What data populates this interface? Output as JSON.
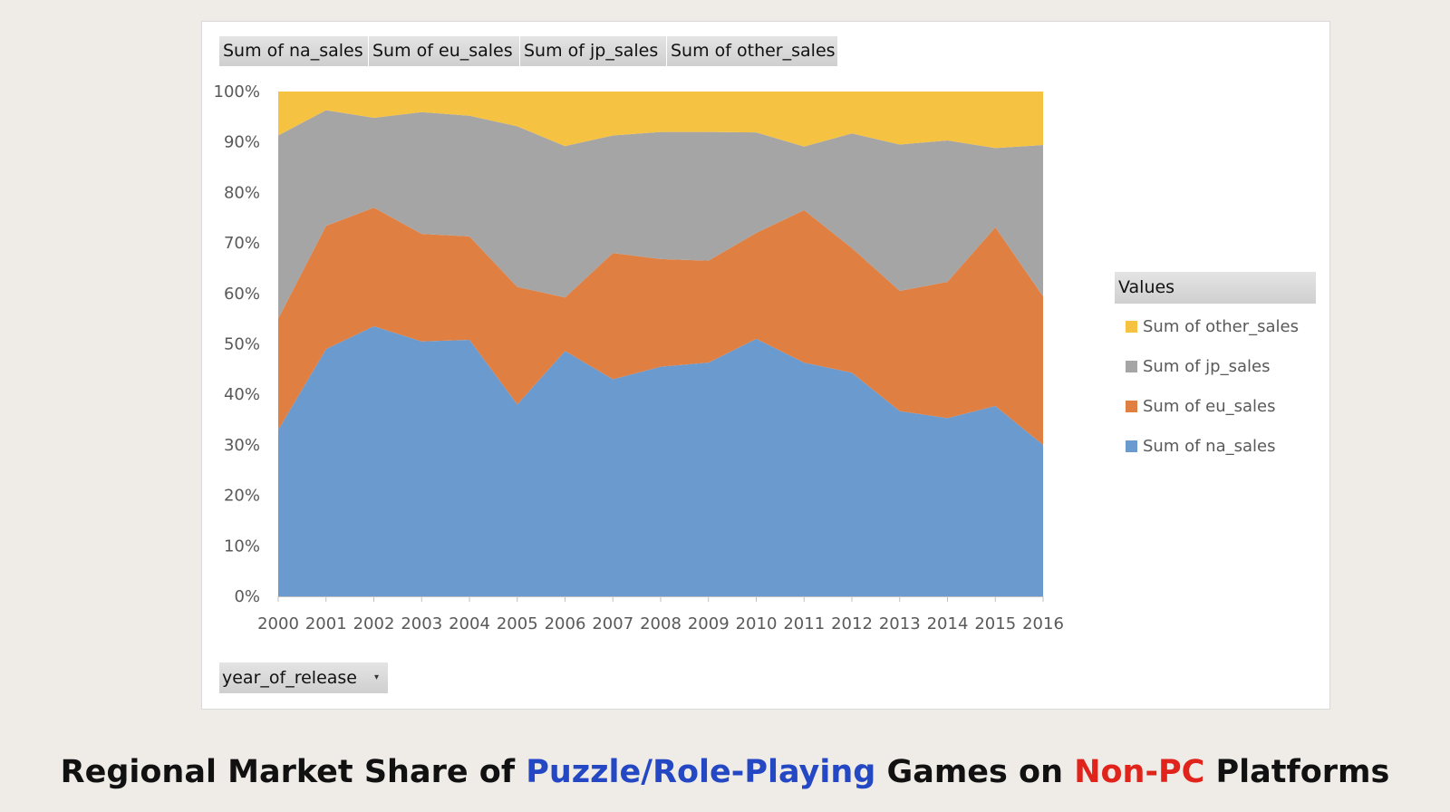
{
  "field_buttons": [
    "Sum of na_sales",
    "Sum of eu_sales",
    "Sum of jp_sales",
    "Sum of other_sales"
  ],
  "legend": {
    "title": "Values",
    "items": [
      {
        "label": "Sum of other_sales",
        "color": "#f5c242"
      },
      {
        "label": "Sum of jp_sales",
        "color": "#a5a5a5"
      },
      {
        "label": "Sum of eu_sales",
        "color": "#e07f42"
      },
      {
        "label": "Sum of na_sales",
        "color": "#6b9acf"
      }
    ]
  },
  "filter": {
    "label": "year_of_release",
    "arrow": "▾"
  },
  "footer": {
    "part1": "Regional Market Share of ",
    "part2": "Puzzle/Role-Playing",
    "part3": " Games on ",
    "part4": "Non-PC",
    "part5": " Platforms",
    "color2": "#2448c4",
    "color4": "#e0231b"
  },
  "chart_data": {
    "type": "area",
    "stacked": "percent",
    "x": [
      "2000",
      "2001",
      "2002",
      "2003",
      "2004",
      "2005",
      "2006",
      "2007",
      "2008",
      "2009",
      "2010",
      "2011",
      "2012",
      "2013",
      "2014",
      "2015",
      "2016"
    ],
    "yticks": [
      "0%",
      "10%",
      "20%",
      "30%",
      "40%",
      "50%",
      "60%",
      "70%",
      "80%",
      "90%",
      "100%"
    ],
    "ylim": [
      0,
      100
    ],
    "series": [
      {
        "name": "Sum of na_sales",
        "color": "#6b9acf",
        "values": [
          33,
          49,
          53.5,
          50.5,
          50.8,
          38,
          48.6,
          43,
          45.5,
          46.3,
          51,
          46.3,
          44.3,
          36.7,
          35.3,
          37.7,
          30
        ]
      },
      {
        "name": "Sum of eu_sales",
        "color": "#e07f42",
        "values": [
          22,
          24.4,
          23.5,
          21.3,
          20.5,
          23.3,
          10.6,
          25,
          21.3,
          20.2,
          21,
          30.2,
          24.7,
          23.8,
          27,
          35.4,
          29.4
        ]
      },
      {
        "name": "Sum of jp_sales",
        "color": "#a5a5a5",
        "values": [
          36.3,
          22.9,
          17.8,
          24.1,
          23.9,
          31.8,
          30,
          23.3,
          25.2,
          25.5,
          19.9,
          12.6,
          22.7,
          29,
          28,
          15.7,
          30
        ]
      },
      {
        "name": "Sum of other_sales",
        "color": "#f5c242",
        "values": [
          8.7,
          3.7,
          5.2,
          4.1,
          4.8,
          6.9,
          10.8,
          8.7,
          8,
          8,
          8.1,
          10.9,
          8.3,
          10.5,
          9.7,
          11.2,
          10.6
        ]
      }
    ],
    "xlabel": "",
    "ylabel": "",
    "grid": false,
    "legend": "right"
  }
}
